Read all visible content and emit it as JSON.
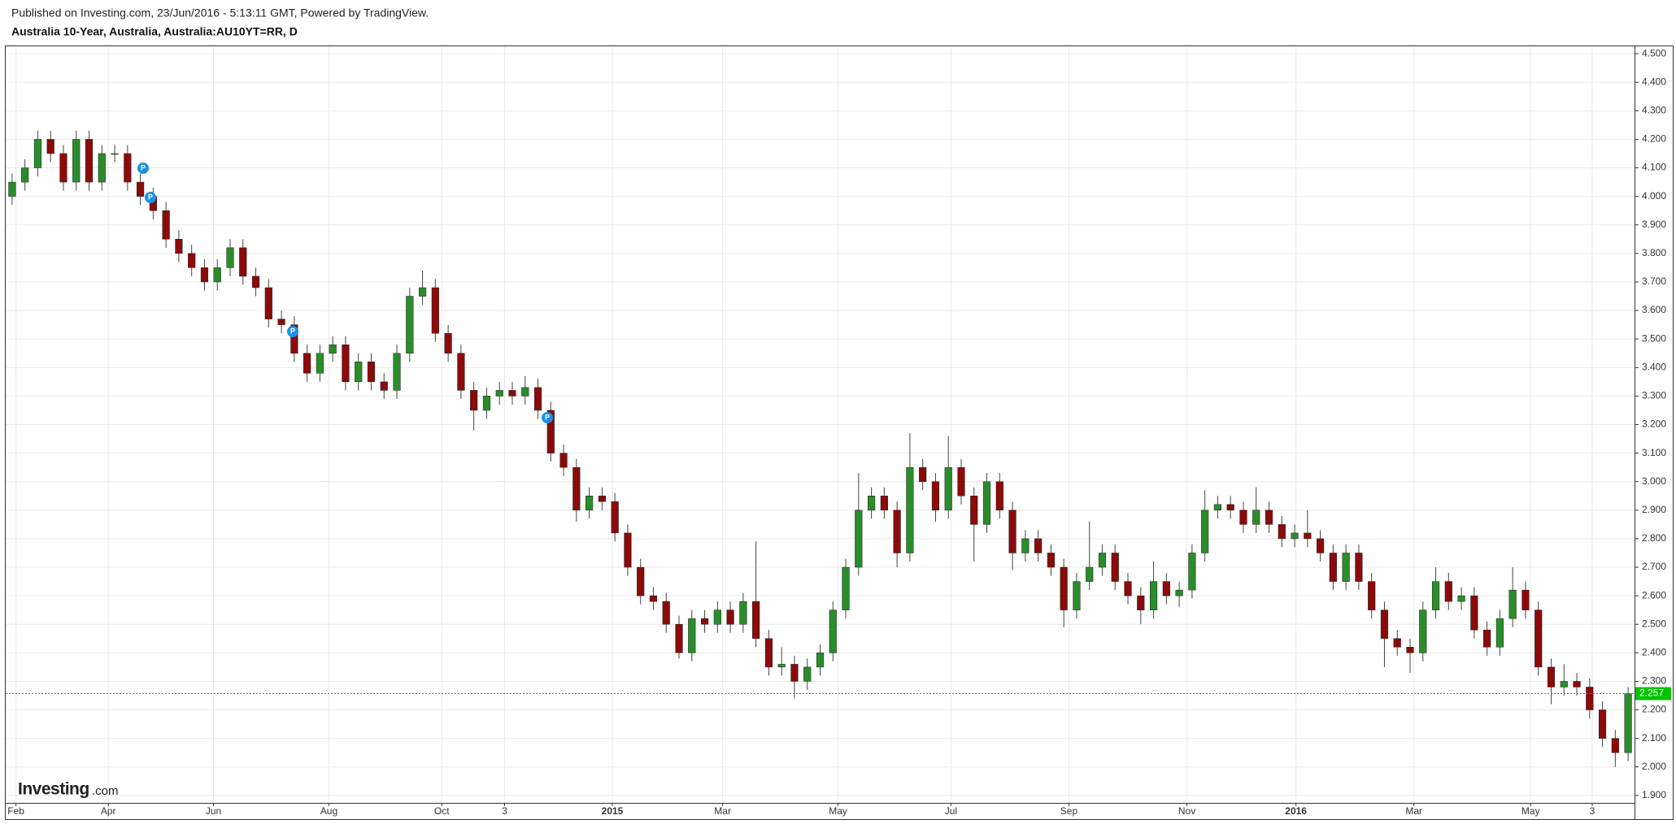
{
  "header": {
    "published": "Published on Investing.com, 23/Jun/2016 - 5:13:11 GMT, Powered by TradingView.",
    "symbol": "Australia 10-Year, Australia, Australia:AU10YT=RR, D"
  },
  "logo": {
    "brand": "Investing",
    "suffix": ".com"
  },
  "chart_data": {
    "type": "candlestick",
    "grid": true,
    "up_color": "#2a8c2a",
    "down_color": "#8b0a0a",
    "wick_color": "#444444",
    "last_value": 2.257,
    "last_color": "#00c400",
    "xlim": [
      -0.5,
      126.5
    ],
    "xticks": [
      {
        "value": 0.3,
        "label": "Feb"
      },
      {
        "value": 7.5,
        "label": "Apr"
      },
      {
        "value": 15.7,
        "label": "Jun"
      },
      {
        "value": 24.7,
        "label": "Aug"
      },
      {
        "value": 33.5,
        "label": "Oct"
      },
      {
        "value": 38.4,
        "label": "3"
      },
      {
        "value": 46.8,
        "label": "2015"
      },
      {
        "value": 55.4,
        "label": "Mar"
      },
      {
        "value": 64.4,
        "label": "May"
      },
      {
        "value": 73.2,
        "label": "Jul"
      },
      {
        "value": 82.4,
        "label": "Sep"
      },
      {
        "value": 91.6,
        "label": "Nov"
      },
      {
        "value": 100.1,
        "label": "2016"
      },
      {
        "value": 109.3,
        "label": "Mar"
      },
      {
        "value": 118.4,
        "label": "May"
      },
      {
        "value": 123.2,
        "label": "3"
      }
    ],
    "ylim": [
      1.874,
      4.526
    ],
    "yticks": [
      {
        "value": 1.9,
        "label": "1.900"
      },
      {
        "value": 2.0,
        "label": "2.000"
      },
      {
        "value": 2.1,
        "label": "2.100"
      },
      {
        "value": 2.2,
        "label": "2.200"
      },
      {
        "value": 2.3,
        "label": "2.300"
      },
      {
        "value": 2.4,
        "label": "2.400"
      },
      {
        "value": 2.5,
        "label": "2.500"
      },
      {
        "value": 2.6,
        "label": "2.600"
      },
      {
        "value": 2.7,
        "label": "2.700"
      },
      {
        "value": 2.8,
        "label": "2.800"
      },
      {
        "value": 2.9,
        "label": "2.900"
      },
      {
        "value": 3.0,
        "label": "3.000"
      },
      {
        "value": 3.1,
        "label": "3.100"
      },
      {
        "value": 3.2,
        "label": "3.200"
      },
      {
        "value": 3.3,
        "label": "3.300"
      },
      {
        "value": 3.4,
        "label": "3.400"
      },
      {
        "value": 3.5,
        "label": "3.500"
      },
      {
        "value": 3.6,
        "label": "3.600"
      },
      {
        "value": 3.7,
        "label": "3.700"
      },
      {
        "value": 3.8,
        "label": "3.800"
      },
      {
        "value": 3.9,
        "label": "3.900"
      },
      {
        "value": 4.0,
        "label": "4.000"
      },
      {
        "value": 4.1,
        "label": "4.100"
      },
      {
        "value": 4.2,
        "label": "4.200"
      },
      {
        "value": 4.3,
        "label": "4.300"
      },
      {
        "value": 4.4,
        "label": "4.400"
      },
      {
        "value": 4.5,
        "label": "4.500"
      }
    ],
    "open": [
      4.0,
      4.05,
      4.1,
      4.2,
      4.15,
      4.05,
      4.2,
      4.05,
      4.15,
      4.15,
      4.05,
      4.0,
      3.95,
      3.85,
      3.8,
      3.75,
      3.7,
      3.75,
      3.82,
      3.72,
      3.68,
      3.57,
      3.55,
      3.45,
      3.38,
      3.45,
      3.48,
      3.35,
      3.42,
      3.35,
      3.32,
      3.45,
      3.65,
      3.68,
      3.52,
      3.45,
      3.32,
      3.25,
      3.3,
      3.32,
      3.3,
      3.33,
      3.25,
      3.1,
      3.05,
      2.9,
      2.95,
      2.93,
      2.82,
      2.7,
      2.6,
      2.58,
      2.5,
      2.4,
      2.52,
      2.5,
      2.55,
      2.5,
      2.58,
      2.45,
      2.35,
      2.36,
      2.3,
      2.35,
      2.4,
      2.55,
      2.7,
      2.9,
      2.95,
      2.9,
      2.75,
      3.05,
      3.0,
      2.9,
      3.05,
      2.95,
      2.85,
      3.0,
      2.9,
      2.75,
      2.8,
      2.75,
      2.7,
      2.55,
      2.65,
      2.7,
      2.75,
      2.65,
      2.6,
      2.55,
      2.65,
      2.6,
      2.62,
      2.75,
      2.9,
      2.92,
      2.9,
      2.85,
      2.9,
      2.85,
      2.8,
      2.82,
      2.8,
      2.75,
      2.65,
      2.75,
      2.65,
      2.55,
      2.45,
      2.42,
      2.4,
      2.55,
      2.65,
      2.58,
      2.6,
      2.48,
      2.42,
      2.52,
      2.62,
      2.55,
      2.35,
      2.28,
      2.3,
      2.28,
      2.2,
      2.1,
      2.05
    ],
    "high": [
      4.08,
      4.13,
      4.23,
      4.23,
      4.18,
      4.23,
      4.23,
      4.18,
      4.18,
      4.18,
      4.08,
      4.03,
      3.98,
      3.88,
      3.83,
      3.78,
      3.78,
      3.85,
      3.85,
      3.75,
      3.71,
      3.6,
      3.58,
      3.48,
      3.48,
      3.51,
      3.51,
      3.45,
      3.45,
      3.38,
      3.48,
      3.68,
      3.74,
      3.71,
      3.55,
      3.48,
      3.35,
      3.33,
      3.35,
      3.35,
      3.37,
      3.36,
      3.28,
      3.13,
      3.08,
      2.98,
      2.98,
      2.96,
      2.85,
      2.73,
      2.63,
      2.61,
      2.53,
      2.55,
      2.55,
      2.58,
      2.58,
      2.61,
      2.79,
      2.48,
      2.42,
      2.39,
      2.38,
      2.43,
      2.58,
      2.73,
      3.03,
      2.98,
      2.98,
      2.93,
      3.17,
      3.08,
      3.03,
      3.16,
      3.08,
      2.98,
      3.03,
      3.03,
      2.93,
      2.83,
      2.83,
      2.78,
      2.73,
      2.68,
      2.86,
      2.78,
      2.78,
      2.68,
      2.63,
      2.72,
      2.68,
      2.65,
      2.78,
      2.97,
      2.95,
      2.95,
      2.93,
      2.98,
      2.93,
      2.88,
      2.85,
      2.9,
      2.83,
      2.78,
      2.78,
      2.78,
      2.68,
      2.58,
      2.48,
      2.45,
      2.58,
      2.7,
      2.68,
      2.63,
      2.63,
      2.51,
      2.55,
      2.7,
      2.65,
      2.58,
      2.38,
      2.36,
      2.33,
      2.31,
      2.23,
      2.13,
      2.28
    ],
    "low": [
      3.97,
      4.02,
      4.07,
      4.12,
      4.02,
      4.02,
      4.02,
      4.02,
      4.12,
      4.02,
      3.97,
      3.92,
      3.82,
      3.77,
      3.72,
      3.67,
      3.67,
      3.72,
      3.69,
      3.65,
      3.54,
      3.52,
      3.42,
      3.35,
      3.35,
      3.42,
      3.32,
      3.32,
      3.32,
      3.29,
      3.29,
      3.42,
      3.62,
      3.49,
      3.42,
      3.29,
      3.18,
      3.22,
      3.27,
      3.27,
      3.27,
      3.22,
      3.07,
      3.02,
      2.86,
      2.87,
      2.9,
      2.79,
      2.67,
      2.57,
      2.55,
      2.47,
      2.38,
      2.37,
      2.47,
      2.47,
      2.47,
      2.47,
      2.42,
      2.32,
      2.32,
      2.24,
      2.27,
      2.32,
      2.37,
      2.52,
      2.67,
      2.87,
      2.87,
      2.7,
      2.72,
      2.97,
      2.86,
      2.87,
      2.92,
      2.72,
      2.82,
      2.87,
      2.69,
      2.72,
      2.72,
      2.67,
      2.49,
      2.52,
      2.62,
      2.67,
      2.62,
      2.57,
      2.5,
      2.52,
      2.57,
      2.56,
      2.59,
      2.72,
      2.87,
      2.87,
      2.82,
      2.82,
      2.82,
      2.77,
      2.77,
      2.77,
      2.72,
      2.62,
      2.62,
      2.62,
      2.52,
      2.35,
      2.39,
      2.33,
      2.37,
      2.52,
      2.55,
      2.55,
      2.45,
      2.39,
      2.39,
      2.49,
      2.52,
      2.32,
      2.22,
      2.25,
      2.25,
      2.17,
      2.07,
      2.0,
      2.02
    ],
    "close": [
      4.05,
      4.1,
      4.2,
      4.15,
      4.05,
      4.2,
      4.05,
      4.15,
      4.15,
      4.05,
      4.0,
      3.95,
      3.85,
      3.8,
      3.75,
      3.7,
      3.75,
      3.82,
      3.72,
      3.68,
      3.57,
      3.55,
      3.45,
      3.38,
      3.45,
      3.48,
      3.35,
      3.42,
      3.35,
      3.32,
      3.45,
      3.65,
      3.68,
      3.52,
      3.45,
      3.32,
      3.25,
      3.3,
      3.32,
      3.3,
      3.33,
      3.25,
      3.1,
      3.05,
      2.9,
      2.95,
      2.93,
      2.82,
      2.7,
      2.6,
      2.58,
      2.5,
      2.4,
      2.52,
      2.5,
      2.55,
      2.5,
      2.58,
      2.45,
      2.35,
      2.36,
      2.3,
      2.35,
      2.4,
      2.55,
      2.7,
      2.9,
      2.95,
      2.9,
      2.75,
      3.05,
      3.0,
      2.9,
      3.05,
      2.95,
      2.85,
      3.0,
      2.9,
      2.75,
      2.8,
      2.75,
      2.7,
      2.55,
      2.65,
      2.7,
      2.75,
      2.65,
      2.6,
      2.55,
      2.65,
      2.6,
      2.62,
      2.75,
      2.9,
      2.92,
      2.9,
      2.85,
      2.9,
      2.85,
      2.8,
      2.82,
      2.8,
      2.75,
      2.65,
      2.75,
      2.65,
      2.55,
      2.45,
      2.42,
      2.4,
      2.55,
      2.65,
      2.58,
      2.6,
      2.48,
      2.42,
      2.52,
      2.62,
      2.55,
      2.35,
      2.28,
      2.3,
      2.28,
      2.2,
      2.1,
      2.05,
      2.257
    ]
  }
}
